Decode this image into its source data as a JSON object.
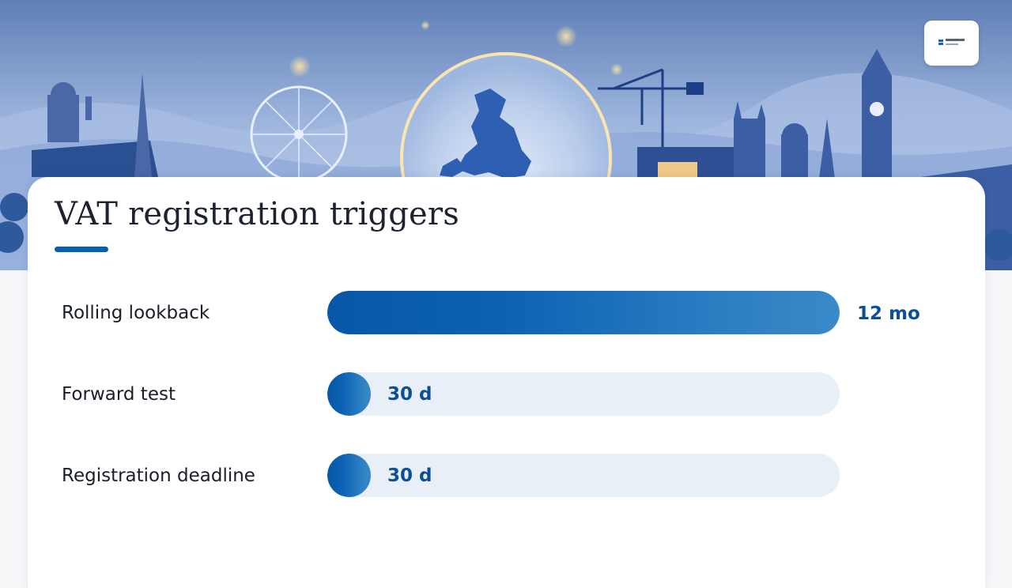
{
  "hero": {
    "image_subject": "illustrated UK skyline with map of Great Britain in a glowing dome",
    "logo_icon": "company-logo-icon"
  },
  "slide": {
    "title": "VAT registration triggers",
    "accent_color": "#0a5fad"
  },
  "chart_data": {
    "type": "bar",
    "orientation": "horizontal",
    "title": "VAT registration triggers",
    "categories": [
      "Rolling lookback",
      "Forward test",
      "Registration deadline"
    ],
    "values": [
      12,
      1,
      1
    ],
    "value_unit": "months",
    "value_labels": [
      "12 mo",
      "30 d",
      "30 d"
    ],
    "xlim": [
      0,
      12
    ],
    "bar_color": "#0a5fad",
    "track_color": "#e8eff7",
    "grid": false
  }
}
